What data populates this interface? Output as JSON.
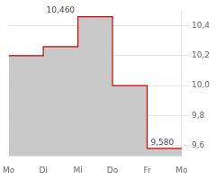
{
  "chart_data": {
    "type": "step",
    "x": [
      0,
      1,
      2,
      3,
      4,
      5
    ],
    "values": [
      10.2,
      10.26,
      10.46,
      10.0,
      9.58,
      9.58
    ],
    "xlim": [
      0,
      5
    ],
    "xticks": [
      {
        "value": 0,
        "label": "Mo"
      },
      {
        "value": 1,
        "label": "Di"
      },
      {
        "value": 2,
        "label": "Mi"
      },
      {
        "value": 3,
        "label": "Do"
      },
      {
        "value": 4,
        "label": "Fr"
      },
      {
        "value": 5,
        "label": "Mo"
      }
    ],
    "ylim": [
      9.53,
      10.5
    ],
    "yticks": [
      {
        "value": 9.6,
        "label": "9,6"
      },
      {
        "value": 9.8,
        "label": "9,8"
      },
      {
        "value": 10.0,
        "label": "10,0"
      },
      {
        "value": 10.2,
        "label": "10,2"
      },
      {
        "value": 10.4,
        "label": "10,4"
      }
    ],
    "color": "#cc0000",
    "grid": "y",
    "annotations": [
      {
        "text": "10,460",
        "x": 1.5,
        "y": 10.46
      },
      {
        "text": "9,580",
        "x": 4,
        "y": 9.58
      }
    ]
  }
}
